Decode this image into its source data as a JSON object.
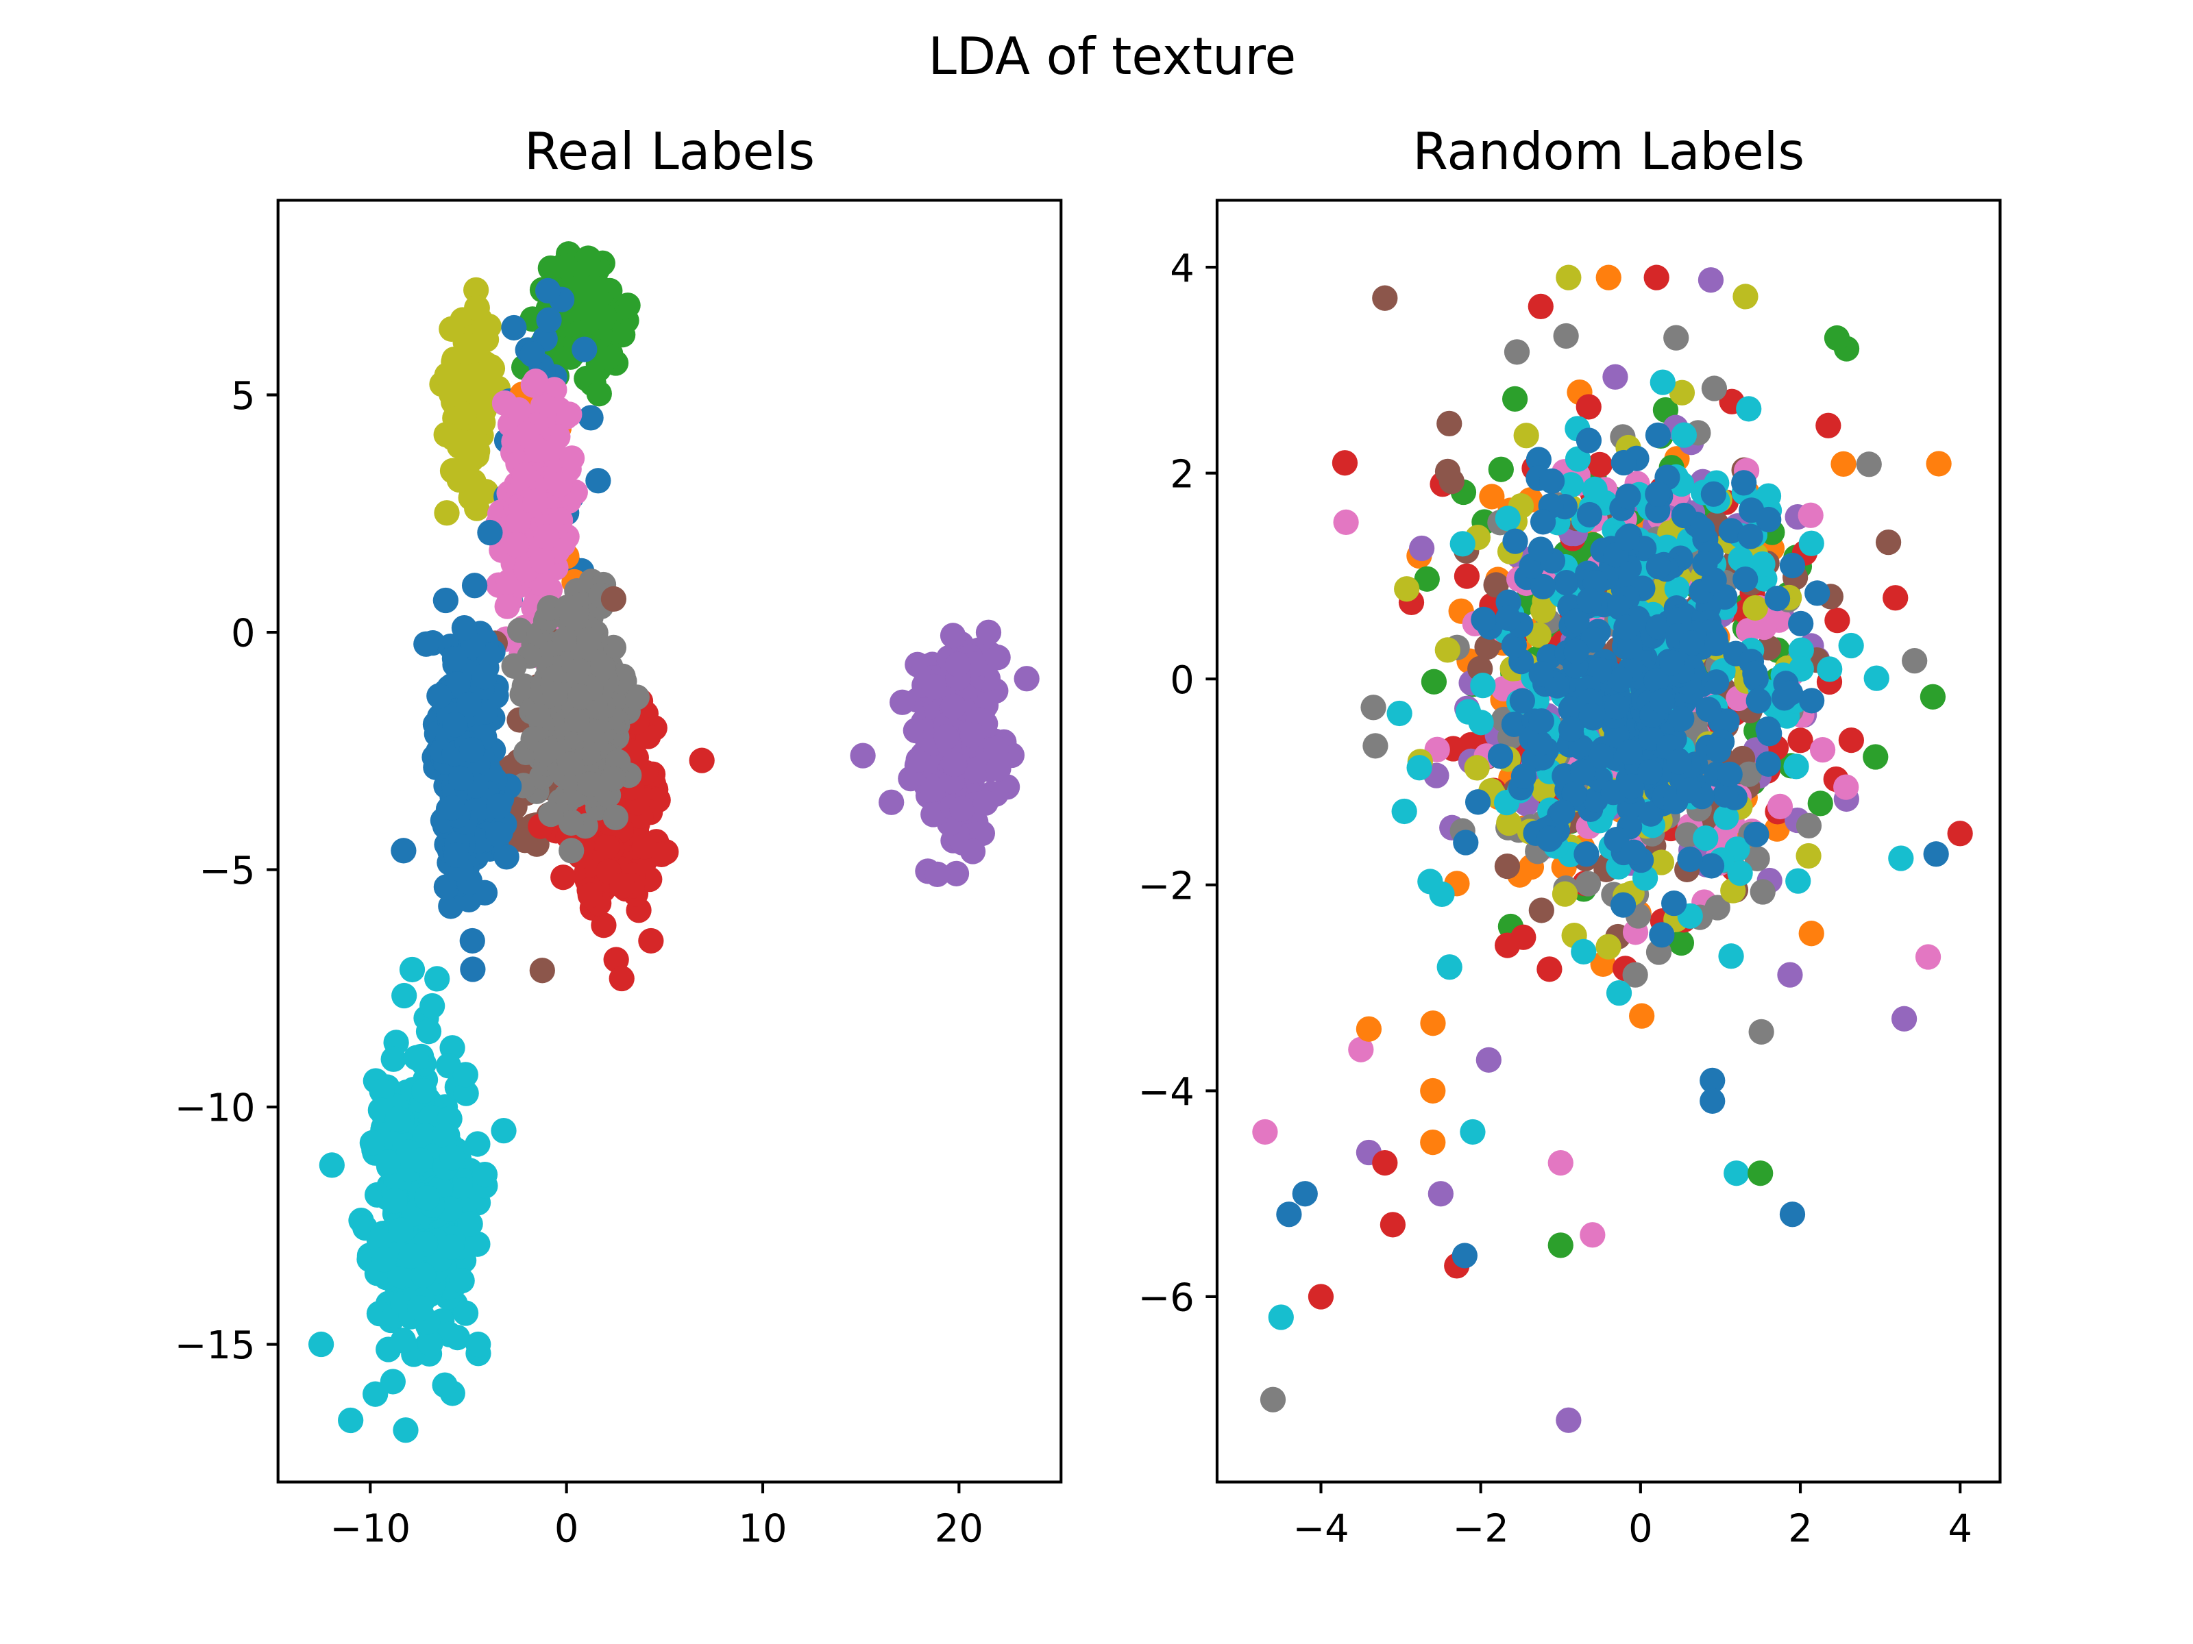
{
  "figure": {
    "title": "LDA of texture"
  },
  "colors": [
    "#1f77b4",
    "#ff7f0e",
    "#2ca02c",
    "#d62728",
    "#9467bd",
    "#8c564b",
    "#e377c2",
    "#7f7f7f",
    "#bcbd22",
    "#17becf"
  ],
  "chart_data": [
    {
      "type": "scatter",
      "title": "Real Labels",
      "xlabel": "",
      "ylabel": "",
      "xlim": [
        -14.7,
        25.2
      ],
      "ylim": [
        -17.9,
        9.1
      ],
      "xticks": [
        -10,
        0,
        10,
        20
      ],
      "xtick_labels": [
        "−10",
        "0",
        "10",
        "20"
      ],
      "yticks": [
        -15,
        -10,
        -5,
        0,
        5
      ],
      "ytick_labels": [
        "−15",
        "−10",
        "−5",
        "0",
        "5"
      ],
      "grid": false,
      "legend": false,
      "clusters": [
        {
          "color_index": 8,
          "cx": -4.9,
          "cy": 5.0,
          "sx": 0.6,
          "sy": 0.9,
          "n": 120
        },
        {
          "color_index": 2,
          "cx": 0.7,
          "cy": 6.6,
          "sx": 1.1,
          "sy": 0.5,
          "n": 150
        },
        {
          "color_index": 0,
          "cx": -1.0,
          "cy": 4.0,
          "sx": 1.2,
          "sy": 1.8,
          "n": 40
        },
        {
          "color_index": 1,
          "cx": -1.5,
          "cy": 3.0,
          "sx": 1.0,
          "sy": 1.0,
          "n": 40
        },
        {
          "color_index": 6,
          "cx": -1.6,
          "cy": 2.6,
          "sx": 0.8,
          "sy": 1.2,
          "n": 180
        },
        {
          "color_index": 5,
          "cx": -2.0,
          "cy": -3.0,
          "sx": 1.5,
          "sy": 1.4,
          "n": 40
        },
        {
          "color_index": 3,
          "cx": 2.5,
          "cy": -3.6,
          "sx": 1.2,
          "sy": 1.1,
          "n": 220
        },
        {
          "color_index": 7,
          "cx": 0.6,
          "cy": -1.6,
          "sx": 1.2,
          "sy": 1.0,
          "n": 260
        },
        {
          "color_index": 0,
          "cx": -5.0,
          "cy": -2.6,
          "sx": 0.8,
          "sy": 1.4,
          "n": 300
        },
        {
          "color_index": 4,
          "cx": 20.0,
          "cy": -2.4,
          "sx": 1.1,
          "sy": 1.0,
          "n": 250
        },
        {
          "color_index": 9,
          "cx": -7.5,
          "cy": -12.0,
          "sx": 1.2,
          "sy": 1.5,
          "n": 350
        }
      ],
      "points": [
        {
          "x": 15.1,
          "y": -2.6,
          "c": 4
        },
        {
          "x": 18.9,
          "y": -5.1,
          "c": 4
        },
        {
          "x": 6.9,
          "y": -2.7,
          "c": 3
        },
        {
          "x": 4.3,
          "y": -6.5,
          "c": 3
        },
        {
          "x": 2.5,
          "y": -3.9,
          "c": 7
        },
        {
          "x": -4.8,
          "y": -6.5,
          "c": 0
        },
        {
          "x": -8.3,
          "y": -4.6,
          "c": 0
        },
        {
          "x": -3.9,
          "y": 2.1,
          "c": 0
        },
        {
          "x": 2.4,
          "y": 0.7,
          "c": 5
        },
        {
          "x": -12.5,
          "y": -15.0,
          "c": 9
        },
        {
          "x": -11.0,
          "y": -16.6,
          "c": 9
        },
        {
          "x": -6.6,
          "y": -7.3,
          "c": 9
        },
        {
          "x": -4.5,
          "y": -15.0,
          "c": 9
        },
        {
          "x": -3.2,
          "y": -10.5,
          "c": 9
        },
        {
          "x": -5.8,
          "y": 3.4,
          "c": 8
        }
      ]
    },
    {
      "type": "scatter",
      "title": "Random Labels",
      "xlabel": "",
      "ylabel": "",
      "xlim": [
        -5.3,
        4.5
      ],
      "ylim": [
        -7.8,
        4.65
      ],
      "xticks": [
        -4,
        -2,
        0,
        2,
        4
      ],
      "xtick_labels": [
        "−4",
        "−2",
        "0",
        "2",
        "4"
      ],
      "yticks": [
        -6,
        -4,
        -2,
        0,
        2,
        4
      ],
      "ytick_labels": [
        "−6",
        "−4",
        "−2",
        "0",
        "2",
        "4"
      ],
      "grid": false,
      "legend": false,
      "clusters": [
        {
          "color_index": 1,
          "cx": 0.0,
          "cy": 0.0,
          "sx": 1.2,
          "sy": 1.3,
          "n": 90
        },
        {
          "color_index": 2,
          "cx": 0.0,
          "cy": 0.0,
          "sx": 1.2,
          "sy": 1.3,
          "n": 90
        },
        {
          "color_index": 3,
          "cx": 0.0,
          "cy": 0.0,
          "sx": 1.2,
          "sy": 1.3,
          "n": 90
        },
        {
          "color_index": 4,
          "cx": 0.0,
          "cy": 0.0,
          "sx": 1.2,
          "sy": 1.3,
          "n": 90
        },
        {
          "color_index": 5,
          "cx": 0.0,
          "cy": 0.0,
          "sx": 1.2,
          "sy": 1.3,
          "n": 90
        },
        {
          "color_index": 6,
          "cx": 0.0,
          "cy": 0.0,
          "sx": 1.2,
          "sy": 1.3,
          "n": 90
        },
        {
          "color_index": 7,
          "cx": 0.0,
          "cy": 0.0,
          "sx": 1.2,
          "sy": 1.3,
          "n": 90
        },
        {
          "color_index": 8,
          "cx": 0.0,
          "cy": 0.0,
          "sx": 1.2,
          "sy": 1.3,
          "n": 90
        },
        {
          "color_index": 9,
          "cx": 0.0,
          "cy": 0.0,
          "sx": 1.1,
          "sy": 1.2,
          "n": 160
        },
        {
          "color_index": 0,
          "cx": 0.0,
          "cy": 0.0,
          "sx": 0.85,
          "sy": 0.95,
          "n": 320
        }
      ],
      "points": [
        {
          "x": -4.7,
          "y": -4.4,
          "c": 6
        },
        {
          "x": -4.6,
          "y": -7.0,
          "c": 7
        },
        {
          "x": -4.5,
          "y": -6.2,
          "c": 9
        },
        {
          "x": -4.4,
          "y": -5.2,
          "c": 0
        },
        {
          "x": -4.2,
          "y": -5.0,
          "c": 0
        },
        {
          "x": -4.0,
          "y": -6.0,
          "c": 3
        },
        {
          "x": -3.5,
          "y": -3.6,
          "c": 6
        },
        {
          "x": -3.4,
          "y": -3.4,
          "c": 1
        },
        {
          "x": -3.4,
          "y": -4.6,
          "c": 4
        },
        {
          "x": -3.2,
          "y": -4.7,
          "c": 3
        },
        {
          "x": -3.1,
          "y": -5.3,
          "c": 3
        },
        {
          "x": -2.6,
          "y": -4.0,
          "c": 1
        },
        {
          "x": -2.6,
          "y": -4.5,
          "c": 1
        },
        {
          "x": -2.5,
          "y": -5.0,
          "c": 4
        },
        {
          "x": -2.3,
          "y": -5.7,
          "c": 3
        },
        {
          "x": -2.2,
          "y": -5.6,
          "c": 0
        },
        {
          "x": -2.1,
          "y": -4.4,
          "c": 9
        },
        {
          "x": -1.9,
          "y": -3.7,
          "c": 4
        },
        {
          "x": -1.0,
          "y": -4.7,
          "c": 6
        },
        {
          "x": -1.0,
          "y": -5.5,
          "c": 2
        },
        {
          "x": -0.9,
          "y": -7.2,
          "c": 4
        },
        {
          "x": -0.6,
          "y": -5.4,
          "c": 6
        },
        {
          "x": 0.9,
          "y": -3.9,
          "c": 0
        },
        {
          "x": 0.9,
          "y": -4.1,
          "c": 0
        },
        {
          "x": 1.2,
          "y": -4.8,
          "c": 9
        },
        {
          "x": 1.5,
          "y": -4.8,
          "c": 2
        },
        {
          "x": 1.9,
          "y": -5.2,
          "c": 0
        },
        {
          "x": 3.7,
          "y": -1.7,
          "c": 0
        },
        {
          "x": 4.0,
          "y": -1.5,
          "c": 3
        },
        {
          "x": -0.9,
          "y": 3.9,
          "c": 8
        },
        {
          "x": -0.4,
          "y": 3.9,
          "c": 1
        },
        {
          "x": 0.2,
          "y": 3.9,
          "c": 3
        },
        {
          "x": -3.2,
          "y": 3.7,
          "c": 5
        },
        {
          "x": -3.7,
          "y": 2.1,
          "c": 3
        },
        {
          "x": 3.3,
          "y": -3.3,
          "c": 4
        },
        {
          "x": 3.6,
          "y": -2.7,
          "c": 6
        }
      ]
    }
  ]
}
